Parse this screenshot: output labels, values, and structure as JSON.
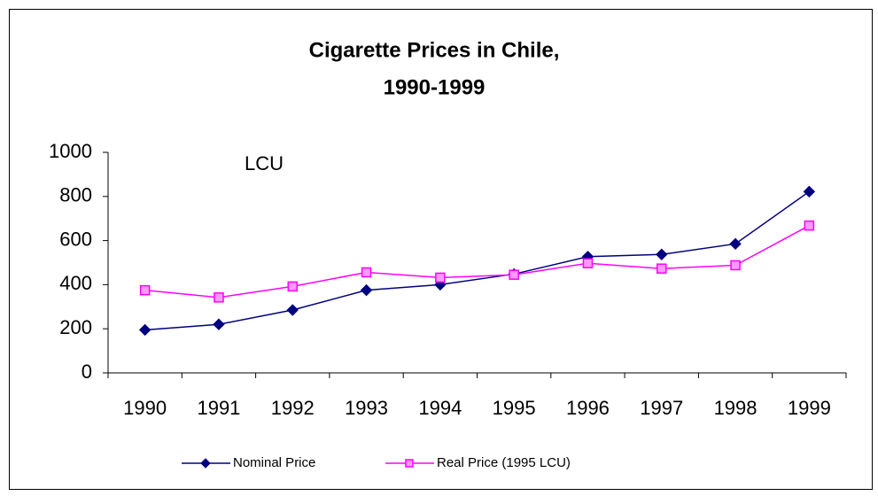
{
  "chart_data": {
    "type": "line",
    "title": [
      "Cigarette Prices in Chile,",
      "1990-1999"
    ],
    "annotation": "LCU",
    "categories": [
      "1990",
      "1991",
      "1992",
      "1993",
      "1994",
      "1995",
      "1996",
      "1997",
      "1998",
      "1999"
    ],
    "series": [
      {
        "name": "Nominal Price",
        "color": "#000080",
        "marker": "diamond",
        "values": [
          195,
          220,
          285,
          375,
          400,
          448,
          527,
          537,
          585,
          822
        ]
      },
      {
        "name": "Real Price (1995 LCU)",
        "color": "#ff00ff",
        "marker": "square",
        "values": [
          375,
          342,
          392,
          456,
          432,
          445,
          497,
          473,
          488,
          668
        ]
      }
    ],
    "ylim": [
      0,
      1000
    ],
    "yticks": [
      0,
      200,
      400,
      600,
      800,
      1000
    ],
    "grid": false,
    "legend": "bottom"
  }
}
